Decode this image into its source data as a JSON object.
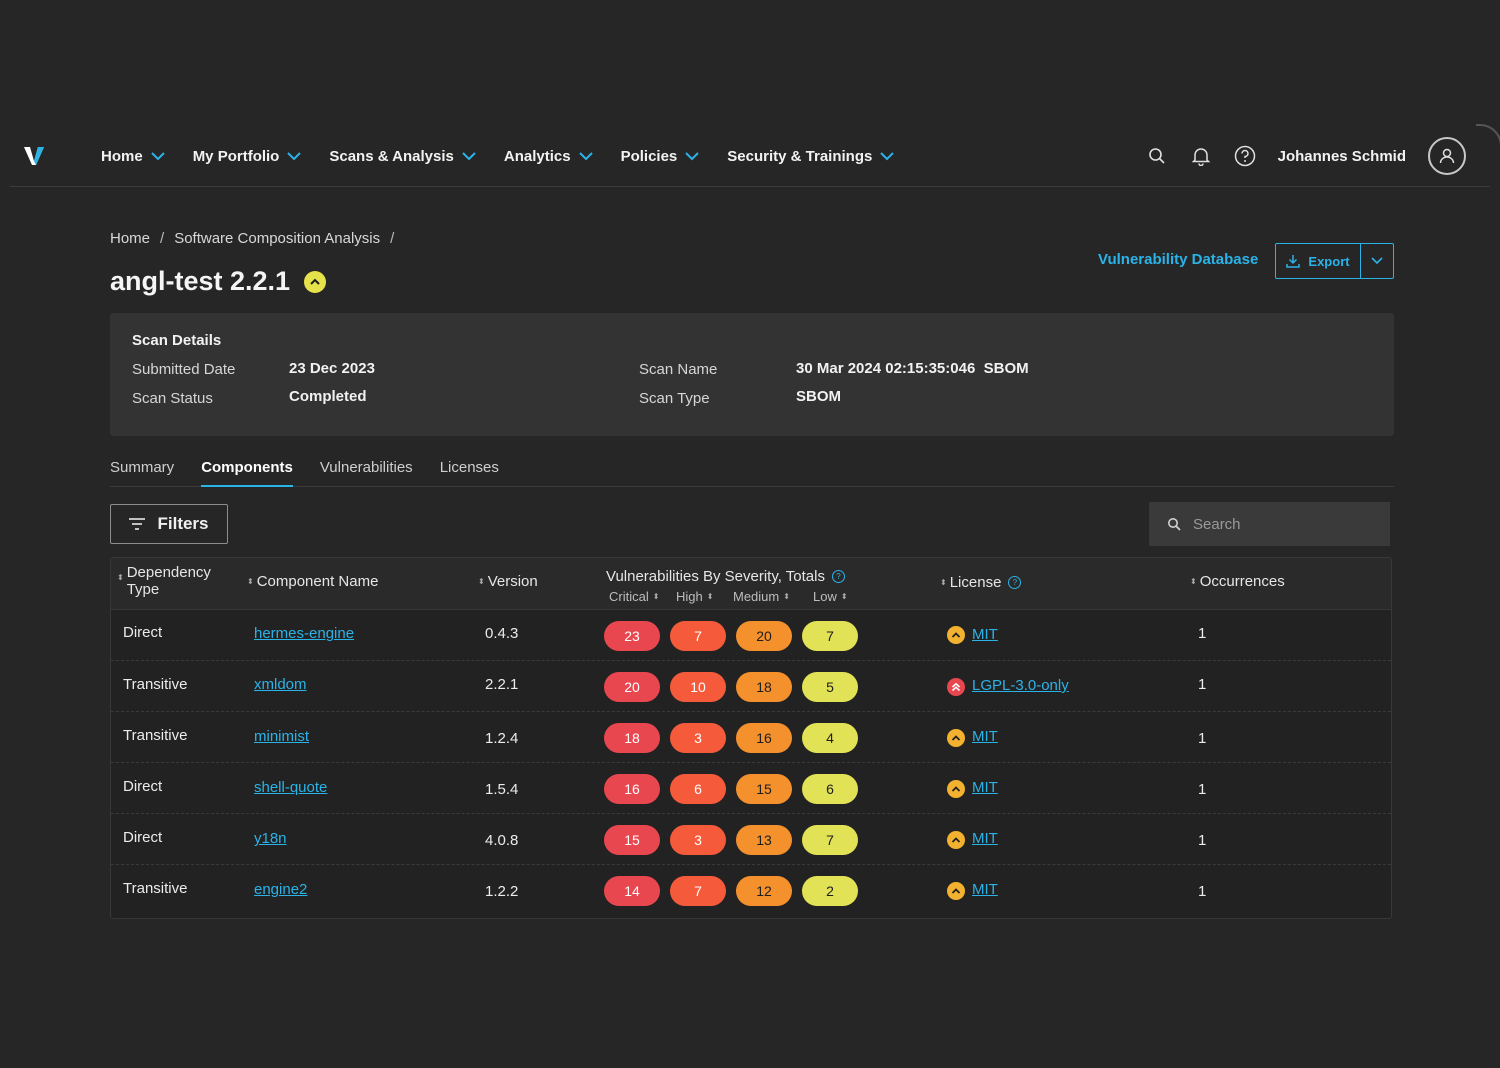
{
  "nav": {
    "items": [
      {
        "label": "Home"
      },
      {
        "label": "My Portfolio"
      },
      {
        "label": "Scans & Analysis"
      },
      {
        "label": "Analytics"
      },
      {
        "label": "Policies"
      },
      {
        "label": "Security & Trainings"
      }
    ],
    "user_name": "Johannes Schmid",
    "icons": [
      "search-icon",
      "bell-icon",
      "help-icon",
      "user-avatar-icon"
    ]
  },
  "breadcrumb": [
    "Home",
    "/",
    "Software Composition Analysis",
    "/"
  ],
  "page": {
    "title": "angl-test 2.2.1",
    "vuln_db_link": "Vulnerability Database",
    "export_label": "Export"
  },
  "scan_details": {
    "title": "Scan Details",
    "submitted_date_label": "Submitted Date",
    "submitted_date": "23 Dec 2023",
    "scan_status_label": "Scan Status",
    "scan_status": "Completed",
    "scan_name_label": "Scan Name",
    "scan_name": "30 Mar 2024 02:15:35:046  SBOM",
    "scan_type_label": "Scan Type",
    "scan_type": "SBOM"
  },
  "tabs": [
    "Summary",
    "Components",
    "Vulnerabilities",
    "Licenses"
  ],
  "active_tab": "Components",
  "filters_label": "Filters",
  "search": {
    "placeholder": "Search"
  },
  "table": {
    "headers": {
      "dependency_type_1": "Dependency",
      "dependency_type_2": "Type",
      "component_name": "Component Name",
      "version": "Version",
      "vulnerabilities": "Vulnerabilities By Severity, Totals",
      "critical": "Critical",
      "high": "High",
      "medium": "Medium",
      "low": "Low",
      "license": "License",
      "occurrences": "Occurrences"
    },
    "rows": [
      {
        "type": "Direct",
        "name": "hermes-engine",
        "version": "0.4.3",
        "critical": "23",
        "high": "7",
        "medium": "20",
        "low": "7",
        "license": "MIT",
        "license_risk": "medium",
        "occurrences": "1"
      },
      {
        "type": "Transitive",
        "name": "xmldom",
        "version": "2.2.1",
        "critical": "20",
        "high": "10",
        "medium": "18",
        "low": "5",
        "license": "LGPL-3.0-only",
        "license_risk": "high",
        "occurrences": "1"
      },
      {
        "type": "Transitive",
        "name": "minimist",
        "version": "1.2.4",
        "critical": "18",
        "high": "3",
        "medium": "16",
        "low": "4",
        "license": "MIT",
        "license_risk": "medium",
        "occurrences": "1"
      },
      {
        "type": "Direct",
        "name": "shell-quote",
        "version": "1.5.4",
        "critical": "16",
        "high": "6",
        "medium": "15",
        "low": "6",
        "license": "MIT",
        "license_risk": "medium",
        "occurrences": "1"
      },
      {
        "type": "Direct",
        "name": "y18n",
        "version": "4.0.8",
        "critical": "15",
        "high": "3",
        "medium": "13",
        "low": "7",
        "license": "MIT",
        "license_risk": "medium",
        "occurrences": "1"
      },
      {
        "type": "Transitive",
        "name": "engine2",
        "version": "1.2.2",
        "critical": "14",
        "high": "7",
        "medium": "12",
        "low": "2",
        "license": "MIT",
        "license_risk": "medium",
        "occurrences": "1"
      }
    ]
  },
  "colors": {
    "accent": "#2bb3e8",
    "critical": "#e8474f",
    "high": "#f55b3a",
    "medium": "#f5912d",
    "low": "#e1e255",
    "background": "#262626"
  }
}
